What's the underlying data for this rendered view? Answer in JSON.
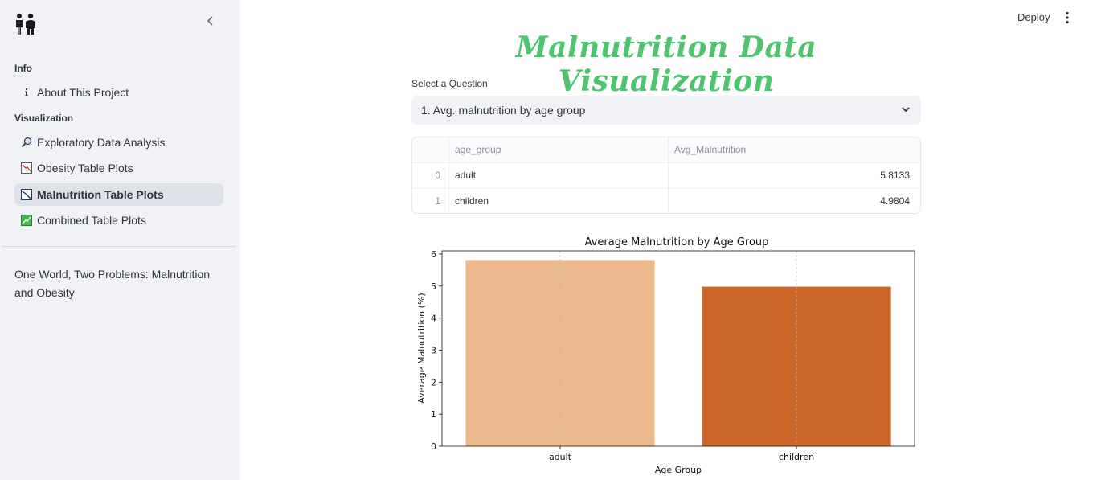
{
  "sidebar": {
    "sections": {
      "info": "Info",
      "visualization": "Visualization"
    },
    "items": [
      {
        "label": "About This Project",
        "icon": "info-icon"
      },
      {
        "label": "Exploratory Data Analysis",
        "icon": "magnifier-icon"
      },
      {
        "label": "Obesity Table Plots",
        "icon": "chart-down-icon"
      },
      {
        "label": "Malnutrition Table Plots",
        "icon": "chart-line-icon",
        "active": true
      },
      {
        "label": "Combined Table Plots",
        "icon": "chart-up-icon"
      }
    ],
    "note": "One World, Two Problems: Malnutrition and Obesity"
  },
  "header": {
    "deploy_label": "Deploy"
  },
  "main": {
    "title": "Malnutrition Data Visualization",
    "select_label": "Select a Question",
    "select_value": "1. Avg. malnutrition by age group"
  },
  "table": {
    "columns": [
      "age_group",
      "Avg_Malnutrition"
    ],
    "rows": [
      {
        "index": "0",
        "age_group": "adult",
        "value": "5.8133"
      },
      {
        "index": "1",
        "age_group": "children",
        "value": "4.9804"
      }
    ]
  },
  "chart_data": {
    "type": "bar",
    "title": "Average Malnutrition by Age Group",
    "xlabel": "Age Group",
    "ylabel": "Average Malnutrition (%)",
    "categories": [
      "adult",
      "children"
    ],
    "values": [
      5.8133,
      4.9804
    ],
    "colors": [
      "#ebb98b",
      "#cc6628"
    ],
    "ylim": [
      0,
      6.1
    ],
    "yticks": [
      0,
      1,
      2,
      3,
      4,
      5,
      6
    ],
    "grid": "x"
  },
  "colors": {
    "title": "#4fc36f",
    "sidebar_bg": "#f0f2f6",
    "active_item_bg": "#dfe1e8"
  }
}
